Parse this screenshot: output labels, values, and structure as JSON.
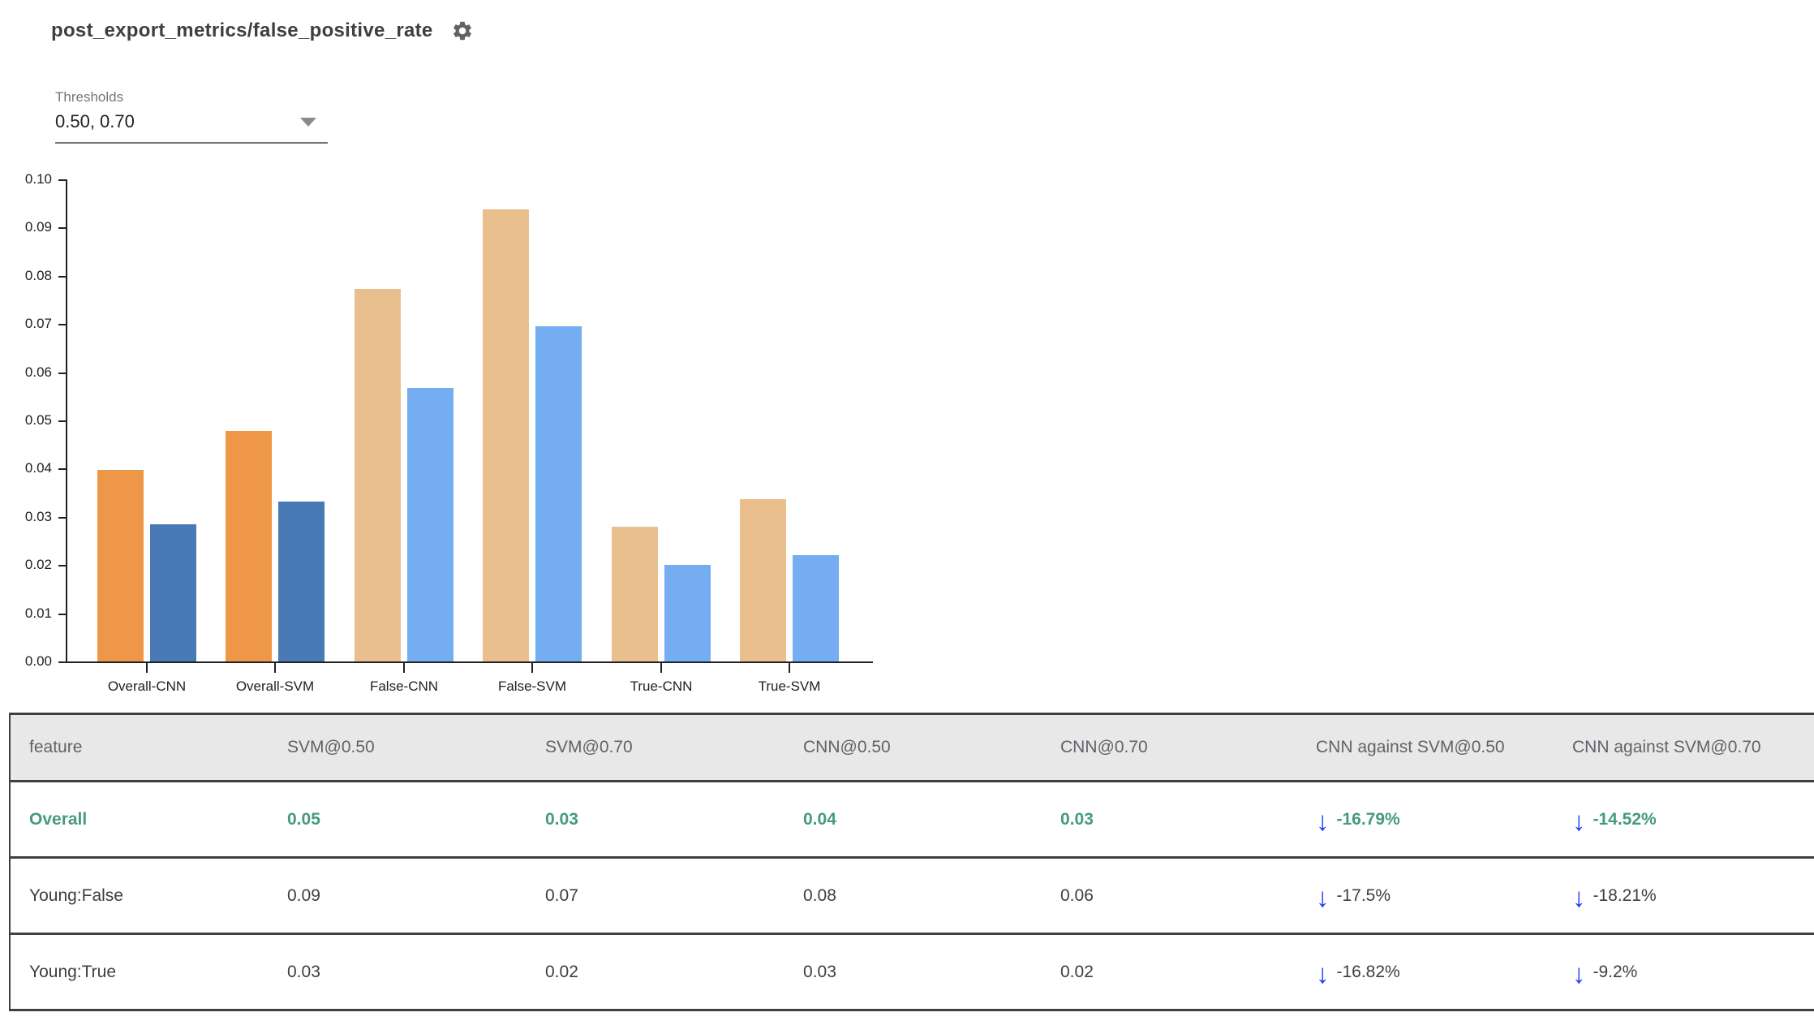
{
  "header": {
    "title": "post_export_metrics/false_positive_rate"
  },
  "thresholds": {
    "label": "Thresholds",
    "value": "0.50, 0.70"
  },
  "chart_data": {
    "type": "bar",
    "title": "post_export_metrics/false_positive_rate",
    "xlabel": "",
    "ylabel": "",
    "categories": [
      "Overall-CNN",
      "Overall-SVM",
      "False-CNN",
      "False-SVM",
      "True-CNN",
      "True-SVM"
    ],
    "series": [
      {
        "name": "threshold 0.50",
        "values": [
          0.0398,
          0.0478,
          0.0773,
          0.0938,
          0.028,
          0.0337
        ]
      },
      {
        "name": "threshold 0.70",
        "values": [
          0.0284,
          0.0332,
          0.0568,
          0.0695,
          0.02,
          0.022
        ]
      }
    ],
    "ylim": [
      0,
      0.1
    ],
    "ytick_step": 0.01,
    "ytick_labels": [
      "0.00",
      "0.01",
      "0.02",
      "0.03",
      "0.04",
      "0.05",
      "0.06",
      "0.07",
      "0.08",
      "0.09",
      "0.10"
    ],
    "grid": false,
    "legend": "none",
    "highlighted_categories": [
      "Overall-CNN",
      "Overall-SVM"
    ],
    "colors": {
      "series1_highlight": "#ef9748",
      "series2_highlight": "#4a7ab6",
      "series1_muted": "#e9c08d",
      "series2_muted": "#74adf1",
      "axis": "#212121"
    }
  },
  "table": {
    "columns": [
      "feature",
      "SVM@0.50",
      "SVM@0.70",
      "CNN@0.50",
      "CNN@0.70",
      "CNN against SVM@0.50",
      "CNN against SVM@0.70"
    ],
    "rows": [
      {
        "feature": "Overall",
        "values": [
          "0.05",
          "0.03",
          "0.04",
          "0.03"
        ],
        "deltas": [
          "-16.79%",
          "-14.52%"
        ],
        "highlight": true
      },
      {
        "feature": "Young:False",
        "values": [
          "0.09",
          "0.07",
          "0.08",
          "0.06"
        ],
        "deltas": [
          "-17.5%",
          "-18.21%"
        ],
        "highlight": false
      },
      {
        "feature": "Young:True",
        "values": [
          "0.03",
          "0.02",
          "0.03",
          "0.02"
        ],
        "deltas": [
          "-16.82%",
          "-9.2%"
        ],
        "highlight": false
      }
    ],
    "delta_arrow": "↓",
    "colors": {
      "highlight_text": "#459a7d",
      "normal_text": "#3c4043",
      "arrow_blue": "#1d3bf7",
      "header_bg": "#e8e8e8",
      "header_text": "#5f6368",
      "border": "#3c4043"
    }
  }
}
